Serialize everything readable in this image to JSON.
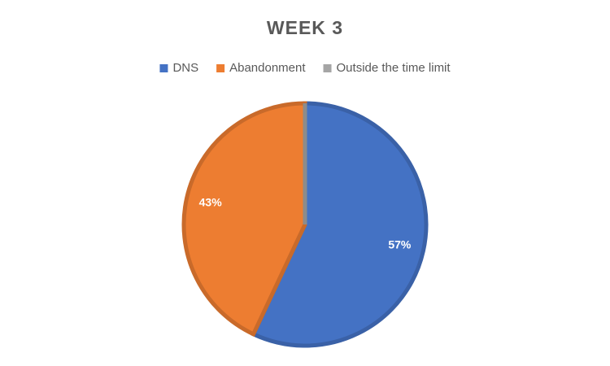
{
  "chart_data": {
    "type": "pie",
    "title": "WEEK 3",
    "categories": [
      "DNS",
      "Abandonment",
      "Outside the time limit"
    ],
    "values": [
      57,
      43,
      0
    ],
    "value_labels": [
      "57%",
      "43%",
      null
    ],
    "colors": [
      "#4472c4",
      "#ed7d31",
      "#a5a5a5"
    ],
    "legend": "top"
  }
}
